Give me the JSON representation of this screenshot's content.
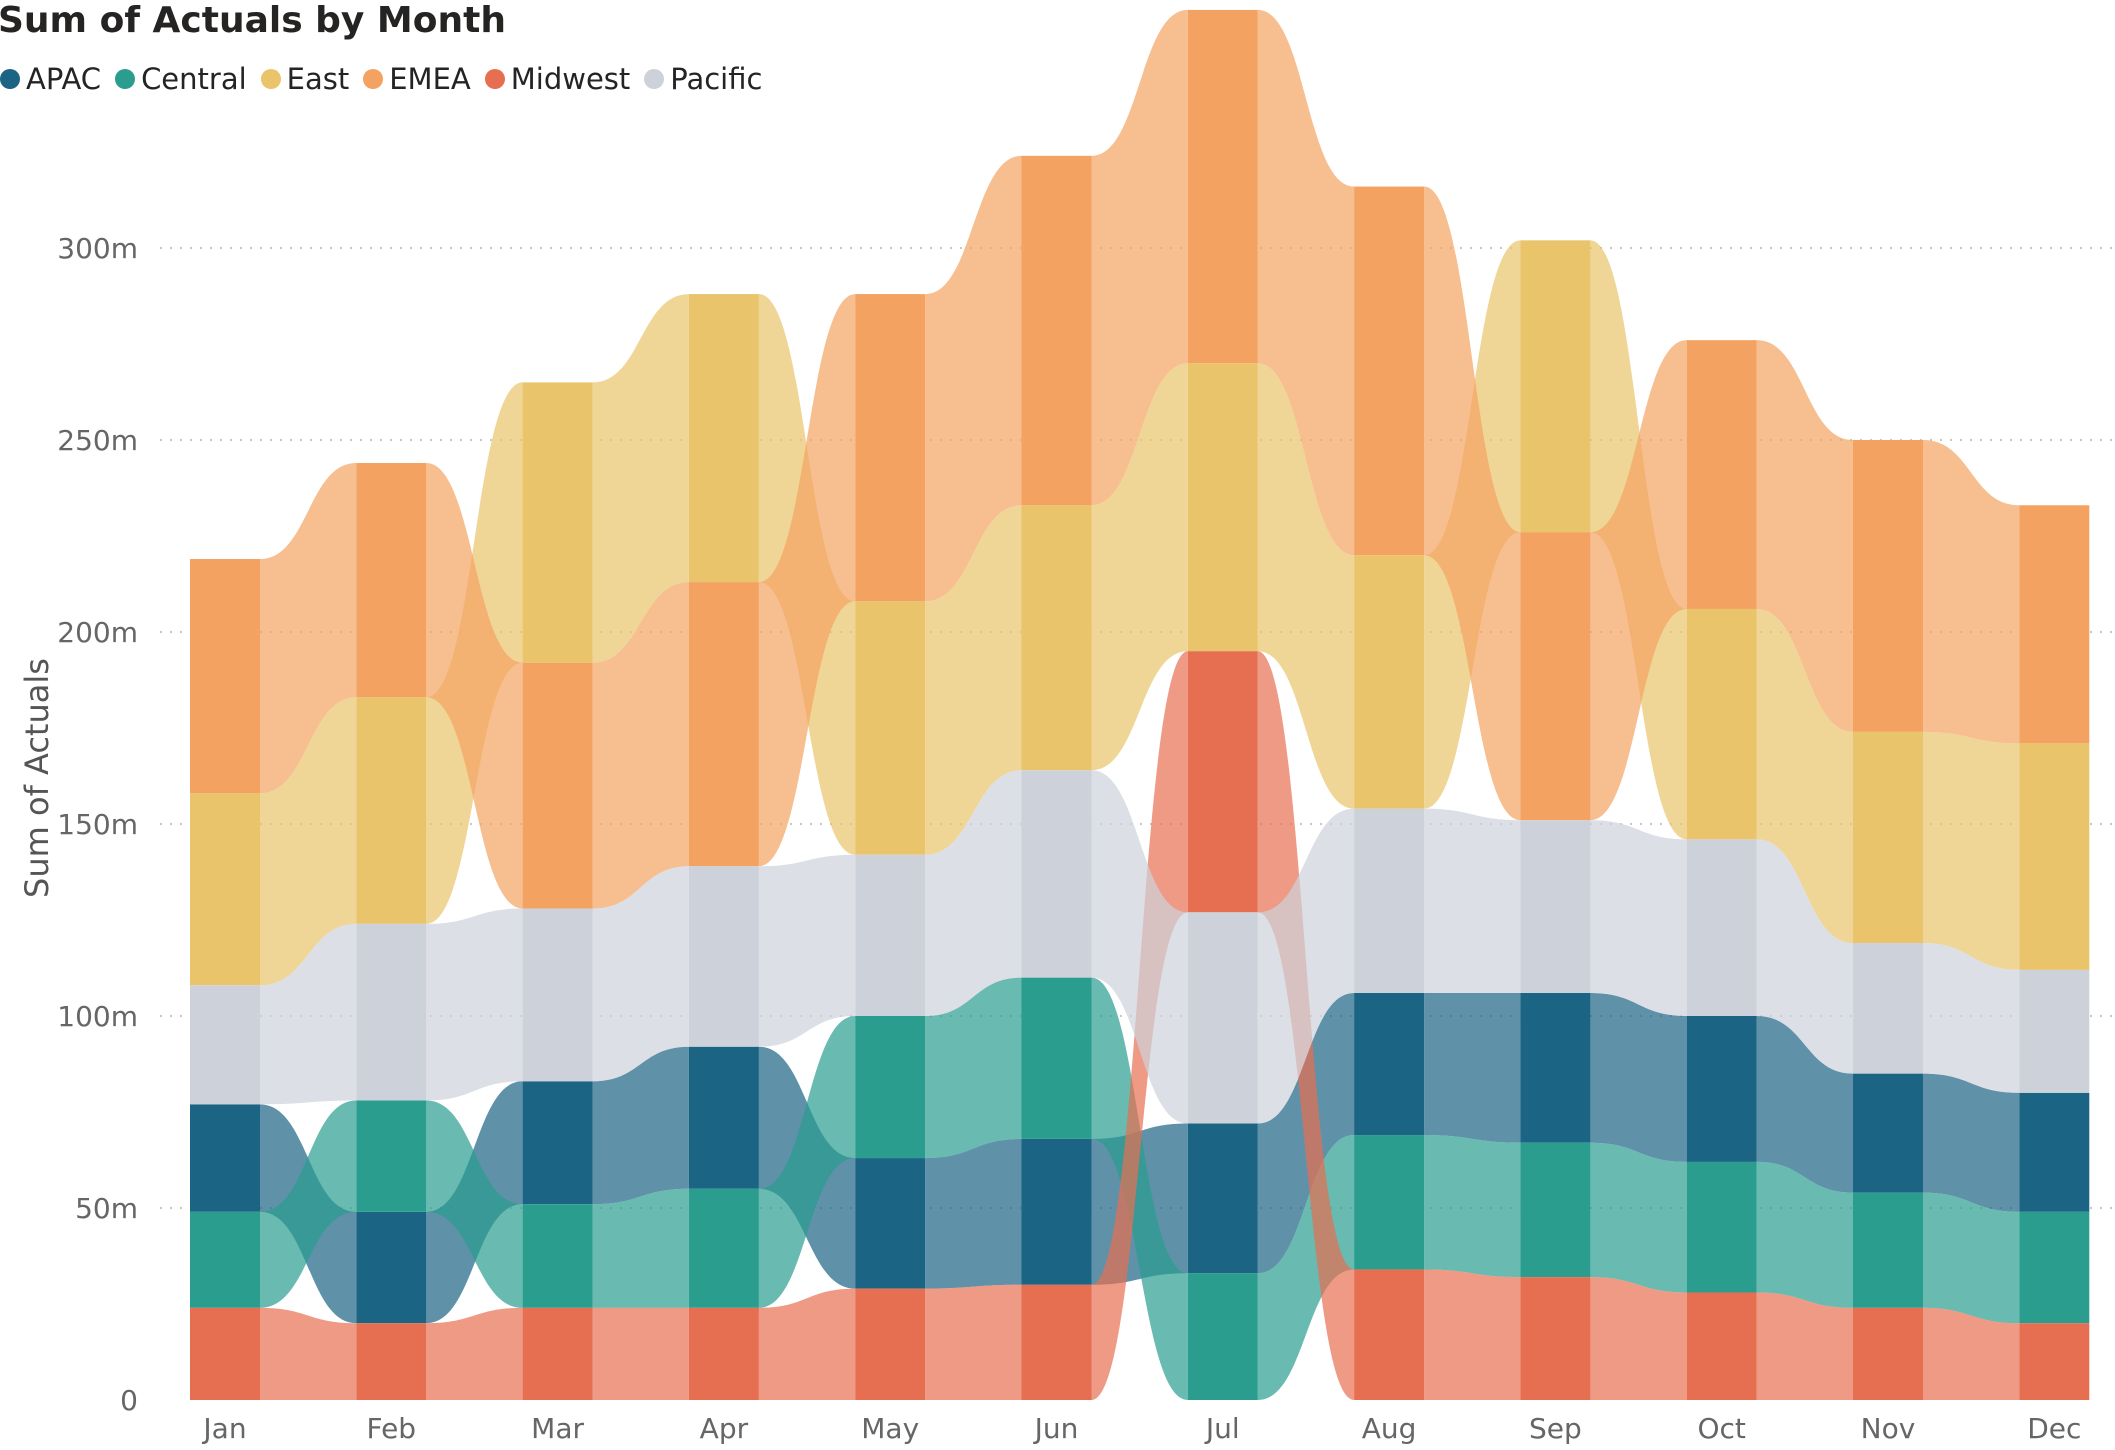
{
  "chart_data": {
    "type": "area",
    "subtype": "ribbon",
    "title": "Sum of Actuals by Month",
    "xlabel": "",
    "ylabel": "Sum of Actuals",
    "ylim": [
      0,
      330
    ],
    "y_ticks": [
      0,
      50,
      100,
      150,
      200,
      250,
      300
    ],
    "y_tick_labels": [
      "0",
      "50m",
      "100m",
      "150m",
      "200m",
      "250m",
      "300m"
    ],
    "legend_position": "top-left",
    "grid": "horizontal-dotted",
    "categories": [
      "Jan",
      "Feb",
      "Mar",
      "Apr",
      "May",
      "Jun",
      "Jul",
      "Aug",
      "Sep",
      "Oct",
      "Nov",
      "Dec"
    ],
    "series": [
      {
        "name": "APAC",
        "color": "#1B6484",
        "values": [
          28,
          29,
          32,
          37,
          34,
          38,
          39,
          37,
          39,
          38,
          31,
          31
        ]
      },
      {
        "name": "Central",
        "color": "#2A9D8F",
        "values": [
          25,
          29,
          27,
          31,
          37,
          42,
          33,
          35,
          35,
          34,
          30,
          29
        ]
      },
      {
        "name": "East",
        "color": "#E9C46A",
        "values": [
          50,
          59,
          73,
          75,
          66,
          69,
          75,
          66,
          76,
          60,
          55,
          59
        ]
      },
      {
        "name": "EMEA",
        "color": "#F4A261",
        "values": [
          61,
          61,
          64,
          74,
          80,
          91,
          92,
          96,
          75,
          70,
          76,
          62
        ]
      },
      {
        "name": "Midwest",
        "color": "#E76F51",
        "values": [
          24,
          20,
          24,
          24,
          29,
          30,
          68,
          34,
          32,
          28,
          24,
          20
        ]
      },
      {
        "name": "Pacific",
        "color": "#CDD1DA",
        "values": [
          31,
          46,
          45,
          47,
          42,
          54,
          55,
          48,
          45,
          46,
          34,
          32
        ]
      }
    ]
  }
}
